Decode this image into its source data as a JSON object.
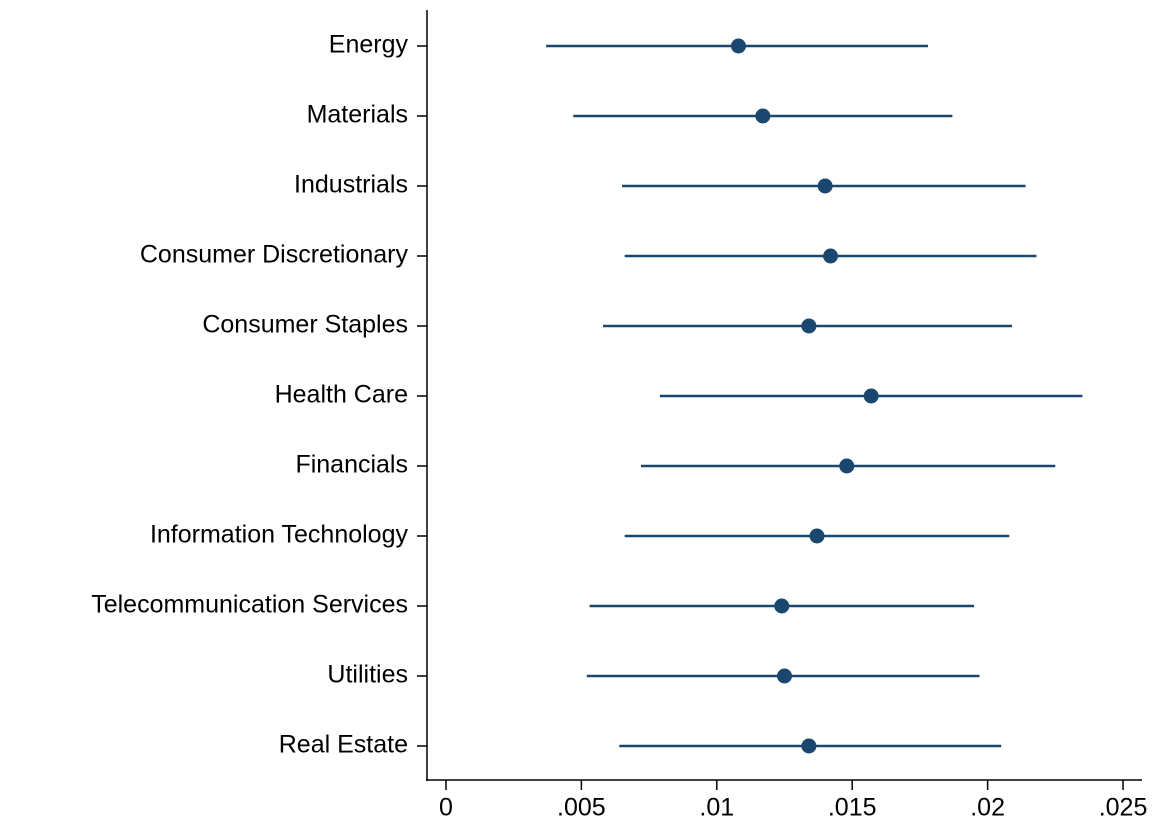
{
  "chart_data": {
    "type": "dot-whisker",
    "categories": [
      "Energy",
      "Materials",
      "Industrials",
      "Consumer Discretionary",
      "Consumer Staples",
      "Health Care",
      "Financials",
      "Information Technology",
      "Telecommunication Services",
      "Utilities",
      "Real Estate"
    ],
    "series": [
      {
        "color": "#1a476f",
        "values": [
          0.0108,
          0.0117,
          0.014,
          0.0142,
          0.0134,
          0.0157,
          0.0148,
          0.0137,
          0.0124,
          0.0125,
          0.0134
        ],
        "ci_low": [
          0.0037,
          0.0047,
          0.0065,
          0.0066,
          0.0058,
          0.0079,
          0.0072,
          0.0066,
          0.0053,
          0.0052,
          0.0064
        ],
        "ci_high": [
          0.0178,
          0.0187,
          0.0214,
          0.0218,
          0.0209,
          0.0235,
          0.0225,
          0.0208,
          0.0195,
          0.0197,
          0.0205
        ]
      }
    ],
    "xlim": [
      -0.0007,
      0.0257
    ],
    "xticks": [
      0,
      {
        "value": 0.005,
        "label": ".005"
      },
      {
        "value": 0.01,
        "label": ".01"
      },
      {
        "value": 0.015,
        "label": ".015"
      },
      {
        "value": 0.02,
        "label": ".02"
      },
      {
        "value": 0.025,
        "label": ".025"
      }
    ],
    "grid": false
  }
}
